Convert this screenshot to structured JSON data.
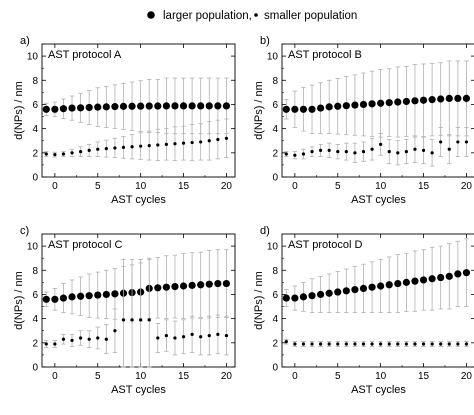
{
  "legend": {
    "large_label": "larger population,",
    "small_label": "smaller population"
  },
  "colors": {
    "points": "#000000",
    "error_bars": "#b0b0b0",
    "axes": "#000000"
  },
  "chart_data": [
    {
      "type": "scatter",
      "panel_label": "a)",
      "title": "AST protocol A",
      "xlabel": "AST cycles",
      "ylabel": "d(NPs) / nm",
      "xlim": [
        -1.5,
        21
      ],
      "ylim": [
        0,
        11
      ],
      "xticks": [
        0,
        5,
        10,
        15,
        20
      ],
      "yticks": [
        0,
        2,
        4,
        6,
        8,
        10
      ],
      "grid": false,
      "series": [
        {
          "name": "larger population",
          "x": [
            -1,
            0,
            1,
            2,
            3,
            4,
            5,
            6,
            7,
            8,
            9,
            10,
            11,
            12,
            13,
            14,
            15,
            16,
            17,
            18,
            19,
            20
          ],
          "y": [
            5.6,
            5.6,
            5.65,
            5.7,
            5.72,
            5.75,
            5.78,
            5.8,
            5.82,
            5.84,
            5.85,
            5.86,
            5.87,
            5.87,
            5.88,
            5.88,
            5.88,
            5.88,
            5.88,
            5.88,
            5.88,
            5.88
          ],
          "err": [
            0.5,
            0.6,
            0.8,
            1.0,
            1.2,
            1.4,
            1.6,
            1.7,
            1.8,
            1.9,
            2.0,
            2.1,
            2.2,
            2.2,
            2.3,
            2.3,
            2.3,
            2.3,
            2.3,
            2.3,
            2.3,
            2.3
          ]
        },
        {
          "name": "smaller population",
          "x": [
            -1,
            0,
            1,
            2,
            3,
            4,
            5,
            6,
            7,
            8,
            9,
            10,
            11,
            12,
            13,
            14,
            15,
            16,
            17,
            18,
            19,
            20
          ],
          "y": [
            1.9,
            1.85,
            1.9,
            2.0,
            2.1,
            2.2,
            2.3,
            2.35,
            2.4,
            2.45,
            2.5,
            2.55,
            2.6,
            2.65,
            2.7,
            2.75,
            2.8,
            2.85,
            2.9,
            3.0,
            3.1,
            3.2
          ],
          "err": [
            0.2,
            0.2,
            0.2,
            0.3,
            0.4,
            0.5,
            0.6,
            0.7,
            0.8,
            0.9,
            1.0,
            1.1,
            1.2,
            1.3,
            1.3,
            1.4,
            1.4,
            1.5,
            1.5,
            1.6,
            1.6,
            1.6
          ]
        }
      ]
    },
    {
      "type": "scatter",
      "panel_label": "b)",
      "title": "AST protocol B",
      "xlabel": "AST cycles",
      "ylabel": "d(NPs) / nm",
      "xlim": [
        -1.5,
        21
      ],
      "ylim": [
        0,
        11
      ],
      "xticks": [
        0,
        5,
        10,
        15,
        20
      ],
      "yticks": [
        0,
        2,
        4,
        6,
        8,
        10
      ],
      "grid": false,
      "series": [
        {
          "name": "larger population",
          "x": [
            -1,
            0,
            1,
            2,
            3,
            4,
            5,
            6,
            7,
            8,
            9,
            10,
            11,
            12,
            13,
            14,
            15,
            16,
            17,
            18,
            19,
            20
          ],
          "y": [
            5.6,
            5.6,
            5.6,
            5.6,
            5.7,
            5.8,
            5.85,
            5.9,
            5.95,
            6.0,
            6.05,
            6.1,
            6.15,
            6.2,
            6.25,
            6.3,
            6.35,
            6.4,
            6.45,
            6.5,
            6.5,
            6.5
          ],
          "err": [
            0.8,
            1.5,
            1.8,
            2.0,
            2.1,
            2.2,
            2.3,
            2.4,
            2.5,
            2.6,
            2.7,
            2.8,
            2.8,
            2.9,
            2.9,
            3.0,
            3.0,
            3.0,
            3.0,
            3.1,
            3.1,
            3.1
          ]
        },
        {
          "name": "smaller population",
          "x": [
            -1,
            0,
            1,
            2,
            3,
            4,
            5,
            6,
            7,
            8,
            9,
            10,
            11,
            12,
            13,
            14,
            15,
            16,
            17,
            18,
            19,
            20
          ],
          "y": [
            1.9,
            1.8,
            1.9,
            2.1,
            2.2,
            2.2,
            2.1,
            2.1,
            2.0,
            2.1,
            2.3,
            2.7,
            2.1,
            2.0,
            2.1,
            2.3,
            2.2,
            2.0,
            2.9,
            2.3,
            2.9,
            2.9
          ],
          "err": [
            0.2,
            0.3,
            0.4,
            0.4,
            0.5,
            0.6,
            0.6,
            0.7,
            0.8,
            0.8,
            0.9,
            0.9,
            1.0,
            1.0,
            1.0,
            1.1,
            1.1,
            1.1,
            1.2,
            1.2,
            1.2,
            1.2
          ]
        }
      ]
    },
    {
      "type": "scatter",
      "panel_label": "c)",
      "title": "AST protocol C",
      "xlabel": "AST cycles",
      "ylabel": "d(NPs) / nm",
      "xlim": [
        -1.5,
        21
      ],
      "ylim": [
        0,
        11
      ],
      "xticks": [
        0,
        5,
        10,
        15,
        20
      ],
      "yticks": [
        0,
        2,
        4,
        6,
        8,
        10
      ],
      "grid": false,
      "series": [
        {
          "name": "larger population",
          "x": [
            -1,
            0,
            1,
            2,
            3,
            4,
            5,
            6,
            7,
            8,
            9,
            10,
            11,
            12,
            13,
            14,
            15,
            16,
            17,
            18,
            19,
            20
          ],
          "y": [
            5.6,
            5.6,
            5.7,
            5.8,
            5.85,
            5.9,
            5.95,
            6.0,
            6.05,
            6.1,
            6.15,
            6.2,
            6.5,
            6.55,
            6.6,
            6.65,
            6.7,
            6.75,
            6.8,
            6.85,
            6.9,
            6.9
          ],
          "err": [
            0.6,
            0.9,
            1.2,
            1.4,
            1.6,
            1.8,
            1.9,
            2.0,
            2.1,
            2.2,
            2.3,
            2.4,
            2.5,
            2.5,
            2.6,
            2.6,
            2.7,
            2.7,
            2.7,
            2.8,
            2.8,
            2.8
          ]
        },
        {
          "name": "smaller population",
          "x": [
            -1,
            0,
            1,
            2,
            3,
            4,
            5,
            6,
            7,
            8,
            9,
            10,
            11,
            12,
            13,
            14,
            15,
            16,
            17,
            18,
            19,
            20
          ],
          "y": [
            1.9,
            1.9,
            2.3,
            2.2,
            2.4,
            2.3,
            2.4,
            2.3,
            3.0,
            3.9,
            3.9,
            3.9,
            3.9,
            2.4,
            2.6,
            2.4,
            2.5,
            2.7,
            2.5,
            2.6,
            2.7,
            2.6
          ],
          "err": [
            0.3,
            0.3,
            0.4,
            0.5,
            0.6,
            0.7,
            0.9,
            1.2,
            1.8,
            5.0,
            5.0,
            5.0,
            5.0,
            1.2,
            1.3,
            1.4,
            1.4,
            1.5,
            1.5,
            1.6,
            1.6,
            1.6
          ]
        }
      ]
    },
    {
      "type": "scatter",
      "panel_label": "d)",
      "title": "AST protocol D",
      "xlabel": "AST cycles",
      "ylabel": "d(NPs) / nm",
      "xlim": [
        -1.5,
        21
      ],
      "ylim": [
        0,
        11
      ],
      "xticks": [
        0,
        5,
        10,
        15,
        20
      ],
      "yticks": [
        0,
        2,
        4,
        6,
        8,
        10
      ],
      "grid": false,
      "series": [
        {
          "name": "larger population",
          "x": [
            -1,
            0,
            1,
            2,
            3,
            4,
            5,
            6,
            7,
            8,
            9,
            10,
            11,
            12,
            13,
            14,
            15,
            16,
            17,
            18,
            19,
            20
          ],
          "y": [
            5.7,
            5.7,
            5.8,
            5.9,
            6.0,
            6.1,
            6.2,
            6.3,
            6.4,
            6.5,
            6.6,
            6.7,
            6.8,
            6.9,
            7.0,
            7.1,
            7.2,
            7.3,
            7.4,
            7.5,
            7.7,
            7.8
          ],
          "err": [
            0.7,
            1.0,
            1.2,
            1.4,
            1.5,
            1.6,
            1.7,
            1.8,
            1.9,
            2.0,
            2.1,
            2.2,
            2.3,
            2.4,
            2.4,
            2.5,
            2.5,
            2.6,
            2.6,
            2.7,
            2.7,
            2.8
          ]
        },
        {
          "name": "smaller population",
          "x": [
            -1,
            0,
            1,
            2,
            3,
            4,
            5,
            6,
            7,
            8,
            9,
            10,
            11,
            12,
            13,
            14,
            15,
            16,
            17,
            18,
            19,
            20
          ],
          "y": [
            2.1,
            1.9,
            1.9,
            1.9,
            1.9,
            1.9,
            1.9,
            1.9,
            1.9,
            1.9,
            1.9,
            1.9,
            1.9,
            1.9,
            1.9,
            1.9,
            1.9,
            1.9,
            1.9,
            1.9,
            1.9,
            1.9
          ],
          "err": [
            0.2,
            0.2,
            0.2,
            0.2,
            0.2,
            0.2,
            0.2,
            0.2,
            0.2,
            0.2,
            0.2,
            0.2,
            0.2,
            0.2,
            0.2,
            0.2,
            0.2,
            0.2,
            0.2,
            0.2,
            0.2,
            0.2
          ]
        }
      ]
    }
  ]
}
